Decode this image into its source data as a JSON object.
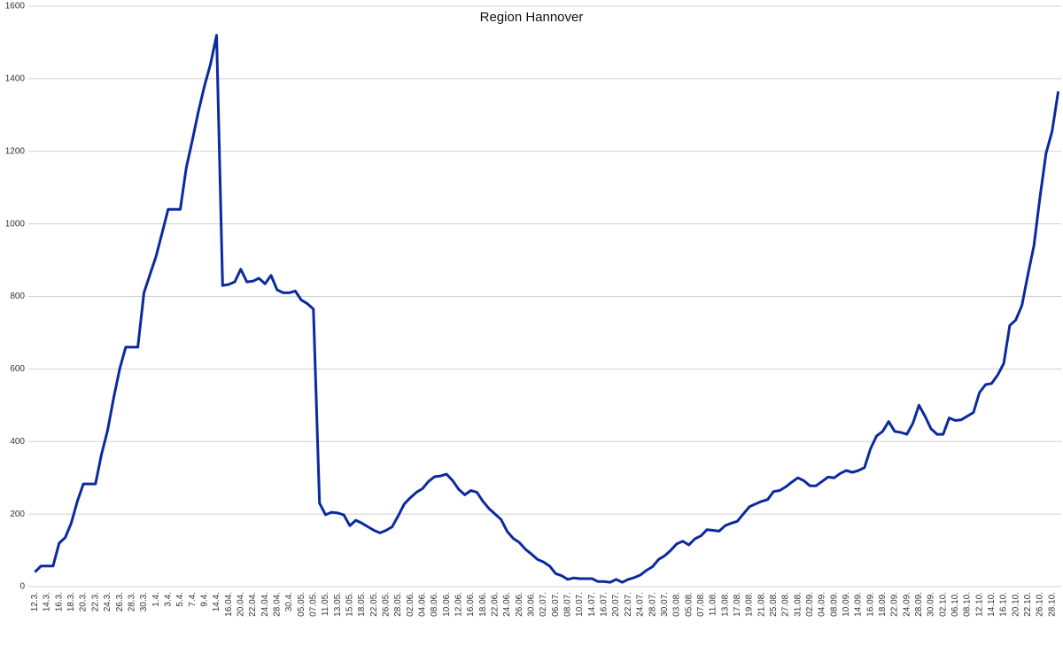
{
  "chart_data": {
    "type": "line",
    "title": "Region Hannover",
    "categories": [
      "12.3.",
      null,
      "14.3.",
      null,
      "16.3.",
      null,
      "18.3.",
      null,
      "20.3.",
      null,
      "22.3.",
      null,
      "24.3.",
      null,
      "26.3.",
      null,
      "28.3.",
      null,
      "30.3.",
      null,
      "1.4.",
      null,
      "3.4.",
      null,
      "5.4.",
      null,
      "7.4.",
      null,
      "9.4.",
      null,
      "14.4.",
      null,
      "16.04.",
      null,
      "20.04.",
      null,
      "22.04.",
      null,
      "24.04.",
      null,
      "28.04.",
      null,
      "30.4.",
      null,
      "05.05.",
      null,
      "07.05.",
      null,
      "11.05.",
      null,
      "13.05.",
      null,
      "15.05.",
      null,
      "18.05.",
      null,
      "22.05.",
      null,
      "26.05.",
      null,
      "28.05.",
      null,
      "02.06.",
      null,
      "04.06.",
      null,
      "08.06.",
      null,
      "10.06.",
      null,
      "12.06.",
      null,
      "16.06.",
      null,
      "18.06.",
      null,
      "22.06.",
      null,
      "24.06.",
      null,
      "26.06.",
      null,
      "30.06.",
      null,
      "02.07.",
      null,
      "06.07.",
      null,
      "08.07.",
      null,
      "10.07.",
      null,
      "14.07.",
      null,
      "16.07.",
      null,
      "20.07.",
      null,
      "22.07.",
      null,
      "24.07.",
      null,
      "28.07.",
      null,
      "30.07.",
      null,
      "03.08.",
      null,
      "05.08.",
      null,
      "07.08.",
      null,
      "11.08.",
      null,
      "13.08.",
      null,
      "17.08.",
      null,
      "19.08.",
      null,
      "21.08.",
      null,
      "25.08.",
      null,
      "27.08.",
      null,
      "31.08.",
      null,
      "02.09.",
      null,
      "04.09.",
      null,
      "08.09.",
      null,
      "10.09.",
      null,
      "14.09.",
      null,
      "16.09.",
      null,
      "18.09.",
      null,
      "22.09.",
      null,
      "24.09.",
      null,
      "28.09.",
      null,
      "30.09.",
      null,
      "02.10.",
      null,
      "06.10.",
      null,
      "08.10.",
      null,
      "12.10.",
      null,
      "14.10.",
      null,
      "16.10.",
      null,
      "20.10.",
      null,
      "22.10.",
      null,
      "26.10.",
      null,
      "28.10.",
      null
    ],
    "values": [
      40,
      57,
      57,
      57,
      120,
      135,
      175,
      235,
      283,
      283,
      283,
      365,
      430,
      520,
      600,
      660,
      660,
      660,
      810,
      860,
      910,
      975,
      1040,
      1040,
      1040,
      1155,
      1230,
      1310,
      1380,
      1440,
      1520,
      830,
      833,
      840,
      875,
      840,
      842,
      850,
      835,
      858,
      818,
      810,
      810,
      815,
      790,
      780,
      765,
      230,
      198,
      205,
      203,
      198,
      168,
      183,
      175,
      165,
      155,
      148,
      155,
      165,
      195,
      228,
      245,
      260,
      270,
      290,
      303,
      305,
      310,
      292,
      268,
      253,
      265,
      260,
      235,
      215,
      200,
      185,
      152,
      133,
      122,
      103,
      90,
      75,
      68,
      57,
      36,
      30,
      20,
      24,
      22,
      22,
      22,
      14,
      14,
      12,
      20,
      12,
      20,
      25,
      32,
      45,
      55,
      75,
      85,
      100,
      118,
      125,
      115,
      132,
      140,
      157,
      155,
      153,
      168,
      175,
      180,
      200,
      220,
      228,
      235,
      240,
      262,
      265,
      275,
      288,
      300,
      292,
      278,
      278,
      290,
      302,
      300,
      312,
      320,
      315,
      320,
      328,
      380,
      415,
      428,
      455,
      428,
      425,
      420,
      450,
      500,
      470,
      435,
      420,
      420,
      465,
      458,
      460,
      470,
      480,
      535,
      557,
      560,
      583,
      615,
      720,
      735,
      775,
      860,
      940,
      1075,
      1195,
      1255,
      1365
    ],
    "color": "#0a2a9e",
    "ylim": [
      0,
      1600
    ],
    "yticks": [
      0,
      200,
      400,
      600,
      800,
      1000,
      1200,
      1400,
      1600
    ],
    "grid": true
  }
}
